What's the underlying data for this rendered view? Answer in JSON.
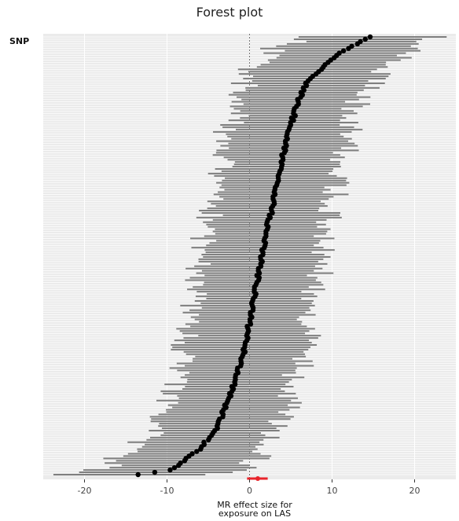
{
  "chart_data": {
    "type": "forest",
    "title": "Forest plot",
    "ylabel": "SNP",
    "xlabel_lines": [
      "MR effect size for",
      "exposure on LAS"
    ],
    "xlim": [
      -25,
      25
    ],
    "xticks": [
      -20,
      -10,
      0,
      10,
      20
    ],
    "xtick_labels": [
      "-20",
      "-10",
      "0",
      "10",
      "20"
    ],
    "reference_line": 0,
    "grid": true,
    "n_snps": 190,
    "snp_estimate_profile": [
      {
        "rank_fraction": 0.0,
        "b": -13.5,
        "ci_halfwidth": 9.5
      },
      {
        "rank_fraction": 0.01,
        "b": -9.5,
        "ci_halfwidth": 8.5
      },
      {
        "rank_fraction": 0.03,
        "b": -8.0,
        "ci_halfwidth": 8.0
      },
      {
        "rank_fraction": 0.06,
        "b": -6.0,
        "ci_halfwidth": 7.5
      },
      {
        "rank_fraction": 0.1,
        "b": -4.2,
        "ci_halfwidth": 7.0
      },
      {
        "rank_fraction": 0.15,
        "b": -3.0,
        "ci_halfwidth": 7.0
      },
      {
        "rank_fraction": 0.2,
        "b": -2.0,
        "ci_halfwidth": 7.0
      },
      {
        "rank_fraction": 0.27,
        "b": -0.8,
        "ci_halfwidth": 7.0
      },
      {
        "rank_fraction": 0.35,
        "b": 0.0,
        "ci_halfwidth": 7.0
      },
      {
        "rank_fraction": 0.45,
        "b": 1.0,
        "ci_halfwidth": 7.0
      },
      {
        "rank_fraction": 0.55,
        "b": 2.0,
        "ci_halfwidth": 7.0
      },
      {
        "rank_fraction": 0.65,
        "b": 3.2,
        "ci_halfwidth": 7.0
      },
      {
        "rank_fraction": 0.75,
        "b": 4.3,
        "ci_halfwidth": 7.0
      },
      {
        "rank_fraction": 0.85,
        "b": 5.8,
        "ci_halfwidth": 7.0
      },
      {
        "rank_fraction": 0.9,
        "b": 7.0,
        "ci_halfwidth": 7.5
      },
      {
        "rank_fraction": 0.94,
        "b": 9.5,
        "ci_halfwidth": 8.0
      },
      {
        "rank_fraction": 0.97,
        "b": 11.5,
        "ci_halfwidth": 8.5
      },
      {
        "rank_fraction": 1.0,
        "b": 14.5,
        "ci_halfwidth": 7.5
      }
    ],
    "pooled_estimate": {
      "b": 1.0,
      "ci": [
        -0.3,
        2.2
      ],
      "color": "#e8232a"
    },
    "colors": {
      "panel_bg": "#ebebeb",
      "gridline": "#ffffff",
      "ci_line": "#7f7f7f",
      "point": "#000000",
      "refline": "#777777",
      "pooled": "#e8232a"
    }
  }
}
